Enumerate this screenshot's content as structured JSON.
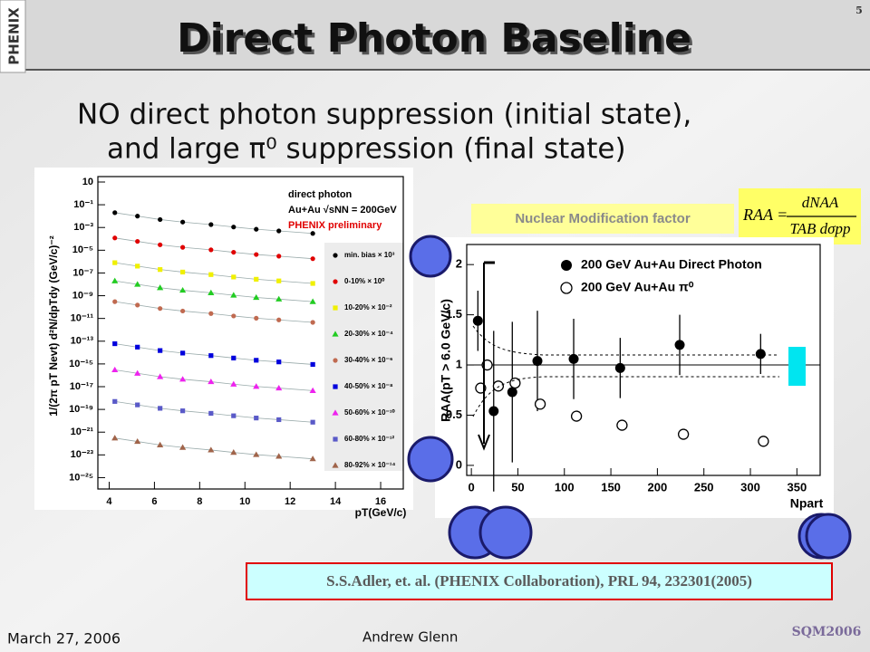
{
  "header": {
    "title": "Direct Photon Baseline",
    "page": "5",
    "logo": "PHENIX"
  },
  "subtitle": [
    "NO direct photon suppression (initial state),",
    "and large π⁰ suppression (final state)"
  ],
  "charts": [
    {
      "type": "scatter",
      "title": "direct photon",
      "system": "Au+Au √sNN = 200GeV",
      "status": "PHENIX preliminary",
      "x_label": "pT(GeV/c)",
      "y_label": "1/(2π pT Nevt) d²N/dpTdy (GeV/c)⁻²",
      "log_y": true,
      "xlim": [
        3.5,
        17
      ],
      "ylim": [
        1e-26,
        30
      ],
      "xticks": [
        4,
        6,
        8,
        10,
        12,
        14,
        16
      ],
      "yticks": [
        10,
        {
          "value": 0.1,
          "label": "10⁻¹"
        },
        {
          "value": 0.001,
          "label": "10⁻³"
        },
        {
          "value": 1e-05,
          "label": "10⁻⁵"
        },
        {
          "value": 1e-07,
          "label": "10⁻⁷"
        },
        {
          "value": 1e-09,
          "label": "10⁻⁹"
        },
        {
          "value": 1e-11,
          "label": "10⁻¹¹"
        },
        {
          "value": 1e-13,
          "label": "10⁻¹³"
        },
        {
          "value": 1e-15,
          "label": "10⁻¹⁵"
        },
        {
          "value": 1e-17,
          "label": "10⁻¹⁷"
        },
        {
          "value": 1e-19,
          "label": "10⁻¹⁹"
        },
        {
          "value": 1e-21,
          "label": "10⁻²¹"
        },
        {
          "value": 1e-23,
          "label": "10⁻²³"
        },
        {
          "value": 1e-25,
          "label": "10⁻²⁵"
        }
      ],
      "x": [
        4.25,
        5.25,
        6.25,
        7.25,
        8.5,
        9.5,
        10.5,
        11.5,
        13
      ],
      "series": [
        {
          "name": "min. bias × 10³",
          "color": "#000000",
          "marker": "circle",
          "values": [
            0.02,
            0.01,
            0.005,
            0.003,
            0.0018,
            0.0011,
            0.0007,
            0.0005,
            0.0003
          ]
        },
        {
          "name": "0-10% × 10⁰",
          "color": "#e00000",
          "marker": "circle",
          "values": [
            0.00012,
            6e-05,
            3e-05,
            1.8e-05,
            1.08e-05,
            6.6e-06,
            4.2e-06,
            3e-06,
            1.8e-06
          ]
        },
        {
          "name": "10-20% × 10⁻²",
          "color": "#f0f000",
          "marker": "square",
          "values": [
            8e-07,
            4e-07,
            2e-07,
            1.2e-07,
            7.2e-08,
            4.4e-08,
            2.8e-08,
            2e-08,
            1.2e-08
          ]
        },
        {
          "name": "20-30% × 10⁻⁴",
          "color": "#22cc22",
          "marker": "triangle",
          "values": [
            2e-08,
            1e-08,
            5e-09,
            3e-09,
            1.8e-09,
            1.1e-09,
            7e-10,
            5e-10,
            3e-10
          ]
        },
        {
          "name": "30-40% × 10⁻⁶",
          "color": "#c06a50",
          "marker": "circle",
          "values": [
            3e-10,
            1.5e-10,
            7.5e-11,
            4.5e-11,
            2.7e-11,
            1.65e-11,
            1.05e-11,
            7.5e-12,
            4.5e-12
          ]
        },
        {
          "name": "40-50% × 10⁻⁸",
          "color": "#0000dd",
          "marker": "square",
          "values": [
            6e-14,
            3e-14,
            1.5e-14,
            9e-15,
            5.4e-15,
            3.3e-15,
            2.1e-15,
            1.5e-15,
            9e-16
          ]
        },
        {
          "name": "50-60% × 10⁻¹⁰",
          "color": "#ee22ee",
          "marker": "triangle",
          "values": [
            3e-16,
            1.5e-16,
            7.5e-17,
            4.5e-17,
            2.7e-17,
            1.65e-17,
            1.05e-17,
            7.5e-18,
            4.5e-18
          ]
        },
        {
          "name": "60-80% × 10⁻¹²",
          "color": "#5a5ac8",
          "marker": "square",
          "values": [
            5e-19,
            2.5e-19,
            1.25e-19,
            7.5e-20,
            4.5e-20,
            2.75e-20,
            1.75e-20,
            1.25e-20,
            7.5e-21
          ]
        },
        {
          "name": "80-92% × 10⁻¹⁴",
          "color": "#a0644a",
          "marker": "triangle",
          "values": [
            3e-22,
            1.5e-22,
            7.5e-23,
            4.5e-23,
            2.7e-23,
            1.65e-23,
            1.05e-23,
            7.5e-24,
            4.5e-24
          ]
        }
      ]
    },
    {
      "type": "scatter",
      "title": "Nuclear Modification factor",
      "formula": [
        "RAA =",
        "dNAA",
        "TAB dσpp"
      ],
      "x_label": "Npart",
      "y_label": "RAA(pT > 6.0 GeV/c)",
      "log_y": false,
      "xlim": [
        -5,
        375
      ],
      "ylim": [
        -0.1,
        2.2
      ],
      "xticks": [
        0,
        50,
        100,
        150,
        200,
        250,
        300,
        350
      ],
      "yticks": [
        0,
        0.5,
        1,
        1.5,
        2
      ],
      "reference": 1,
      "series": [
        {
          "name": "200 GeV Au+Au Direct Photon",
          "color": "#000000",
          "marker": "filled",
          "x": [
            7,
            24,
            44,
            71,
            110,
            160,
            224,
            311
          ],
          "values": [
            1.44,
            0.54,
            0.73,
            1.04,
            1.06,
            0.97,
            1.2,
            1.11
          ],
          "errors": [
            0.3,
            0.8,
            0.7,
            0.5,
            0.4,
            0.3,
            0.3,
            0.2
          ]
        },
        {
          "name": "200 GeV Au+Au π⁰",
          "color": "#000000",
          "marker": "open",
          "x": [
            10,
            17,
            29,
            47,
            74,
            113,
            162,
            228,
            314
          ],
          "values": [
            0.77,
            1.0,
            0.79,
            0.82,
            0.61,
            0.49,
            0.4,
            0.31,
            0.24
          ]
        }
      ]
    }
  ],
  "citation": "S.S.Adler, et. al. (PHENIX Collaboration), PRL 94, 232301(2005)",
  "footer": {
    "date": "March 27, 2006",
    "author": "Andrew Glenn",
    "logo": "SQM2006"
  }
}
